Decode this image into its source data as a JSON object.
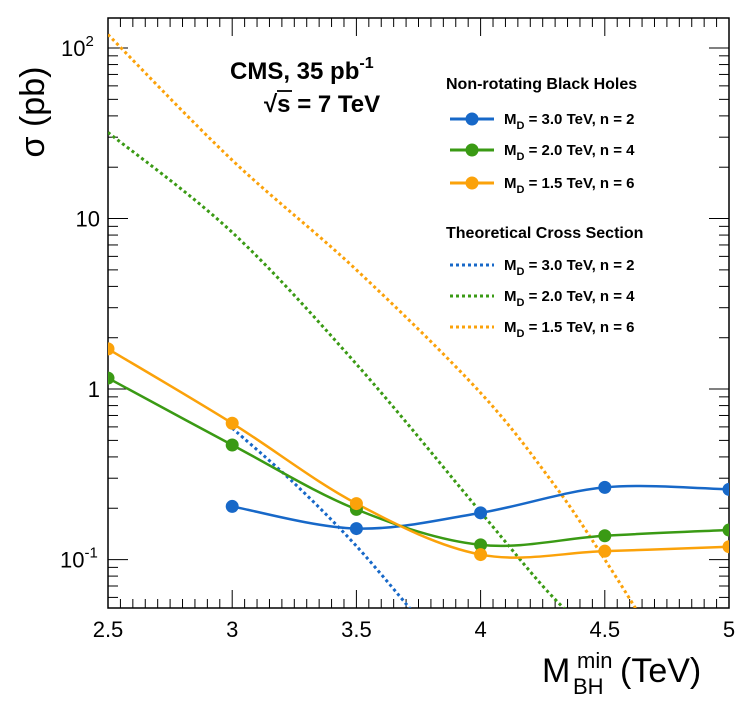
{
  "chart_data": {
    "type": "line",
    "title": "CMS, 35 pb",
    "title_superscript": "-1",
    "subtitle_symbol": "√",
    "subtitle_rest": "s = 7 TeV",
    "ylabel": "σ (pb)",
    "xlabel_main": "M",
    "xlabel_sub": "BH",
    "xlabel_sup": "min",
    "xlabel_unit": "(TeV)",
    "x_range": [
      2.5,
      5.0
    ],
    "y_range": [
      0.052,
      150
    ],
    "y_scale": "log",
    "grid": false,
    "legend_position": "top-right",
    "x_ticks": [
      "2.5",
      "3",
      "3.5",
      "4",
      "4.5",
      "5"
    ],
    "y_tick_labels": {
      "v0_1_base": "10",
      "v0_1_exp": "-1",
      "v1": "1",
      "v10": "10",
      "v100_base": "10",
      "v100_exp": "2"
    },
    "legend_headers": [
      "Non-rotating Black Holes",
      "Theoretical Cross Section"
    ],
    "legend_label_subscript": "D",
    "legend_label_prefix": "M",
    "series": [
      {
        "name_rest": " = 3.0 TeV, n = 2",
        "color": "#1768c8",
        "points": [
          [
            3.0,
            0.205
          ],
          [
            3.5,
            0.152
          ],
          [
            4.0,
            0.188
          ],
          [
            4.5,
            0.265
          ],
          [
            5.0,
            0.258
          ]
        ]
      },
      {
        "name_rest": " = 2.0 TeV, n = 4",
        "color": "#3a9a14",
        "points": [
          [
            2.5,
            1.16
          ],
          [
            3.0,
            0.47
          ],
          [
            3.5,
            0.197
          ],
          [
            4.0,
            0.122
          ],
          [
            4.5,
            0.138
          ],
          [
            5.0,
            0.149
          ]
        ]
      },
      {
        "name_rest": " = 1.5 TeV, n = 6",
        "color": "#fba20a",
        "points": [
          [
            2.5,
            1.72
          ],
          [
            3.0,
            0.63
          ],
          [
            3.5,
            0.213
          ],
          [
            4.0,
            0.107
          ],
          [
            4.5,
            0.112
          ],
          [
            5.0,
            0.119
          ]
        ]
      }
    ],
    "theory": [
      {
        "name_rest": " = 3.0 TeV, n = 2",
        "color": "#1768c8",
        "points": [
          [
            3.0,
            0.59
          ],
          [
            3.25,
            0.28
          ],
          [
            3.5,
            0.12
          ],
          [
            3.75,
            0.045
          ]
        ]
      },
      {
        "name_rest": " = 2.0 TeV, n = 4",
        "color": "#3a9a14",
        "points": [
          [
            2.5,
            32.0
          ],
          [
            3.0,
            8.3
          ],
          [
            3.5,
            1.4
          ],
          [
            4.0,
            0.19
          ],
          [
            4.25,
            0.07
          ],
          [
            4.4,
            0.042
          ]
        ]
      },
      {
        "name_rest": " = 1.5 TeV, n = 6",
        "color": "#fba20a",
        "points": [
          [
            2.5,
            120.0
          ],
          [
            3.0,
            22.0
          ],
          [
            3.5,
            5.0
          ],
          [
            4.0,
            0.95
          ],
          [
            4.3,
            0.27
          ],
          [
            4.5,
            0.1
          ],
          [
            4.65,
            0.045
          ]
        ]
      }
    ]
  }
}
